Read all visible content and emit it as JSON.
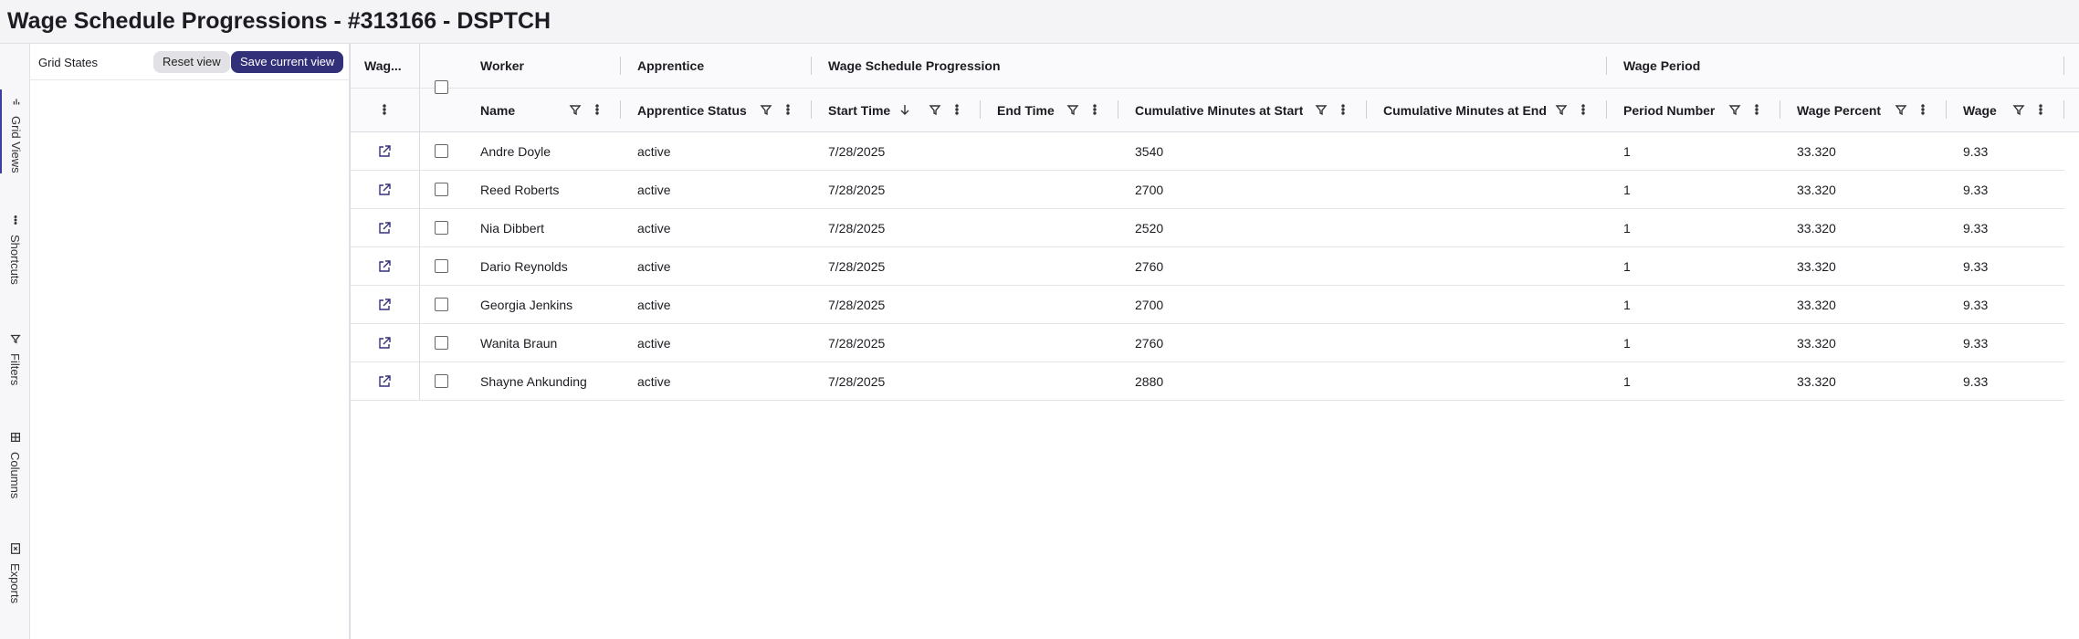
{
  "title": "Wage Schedule Progressions - #313166 - DSPTCH",
  "side_tabs": [
    "Grid Views",
    "Shortcuts",
    "Filters",
    "Columns",
    "Exports"
  ],
  "panel": {
    "title": "Grid States",
    "buttons": [
      "Reset view",
      "Save current view"
    ]
  },
  "grid": {
    "first_column": "Wag...",
    "groups": [
      {
        "label": "Worker",
        "columns": [
          "Name"
        ]
      },
      {
        "label": "Apprentice",
        "columns": [
          "Apprentice Status"
        ]
      },
      {
        "label": "Wage Schedule Progression",
        "columns": [
          "Start Time",
          "End Time",
          "Cumulative Minutes at Start",
          "Cumulative Minutes at End"
        ]
      },
      {
        "label": "Wage Period",
        "columns": [
          "Period Number",
          "Wage Percent",
          "Wage"
        ]
      }
    ],
    "rows": [
      [
        "Andre Doyle",
        "active",
        "7/28/2025",
        "",
        "3540",
        "",
        "1",
        "33.320",
        "9.33"
      ],
      [
        "Reed Roberts",
        "active",
        "7/28/2025",
        "",
        "2700",
        "",
        "1",
        "33.320",
        "9.33"
      ],
      [
        "Nia Dibbert",
        "active",
        "7/28/2025",
        "",
        "2520",
        "",
        "1",
        "33.320",
        "9.33"
      ],
      [
        "Dario Reynolds",
        "active",
        "7/28/2025",
        "",
        "2760",
        "",
        "1",
        "33.320",
        "9.33"
      ],
      [
        "Georgia Jenkins",
        "active",
        "7/28/2025",
        "",
        "2700",
        "",
        "1",
        "33.320",
        "9.33"
      ],
      [
        "Wanita Braun",
        "active",
        "7/28/2025",
        "",
        "2760",
        "",
        "1",
        "33.320",
        "9.33"
      ],
      [
        "Shayne Ankunding",
        "active",
        "7/28/2025",
        "",
        "2880",
        "",
        "1",
        "33.320",
        "9.33"
      ]
    ]
  }
}
